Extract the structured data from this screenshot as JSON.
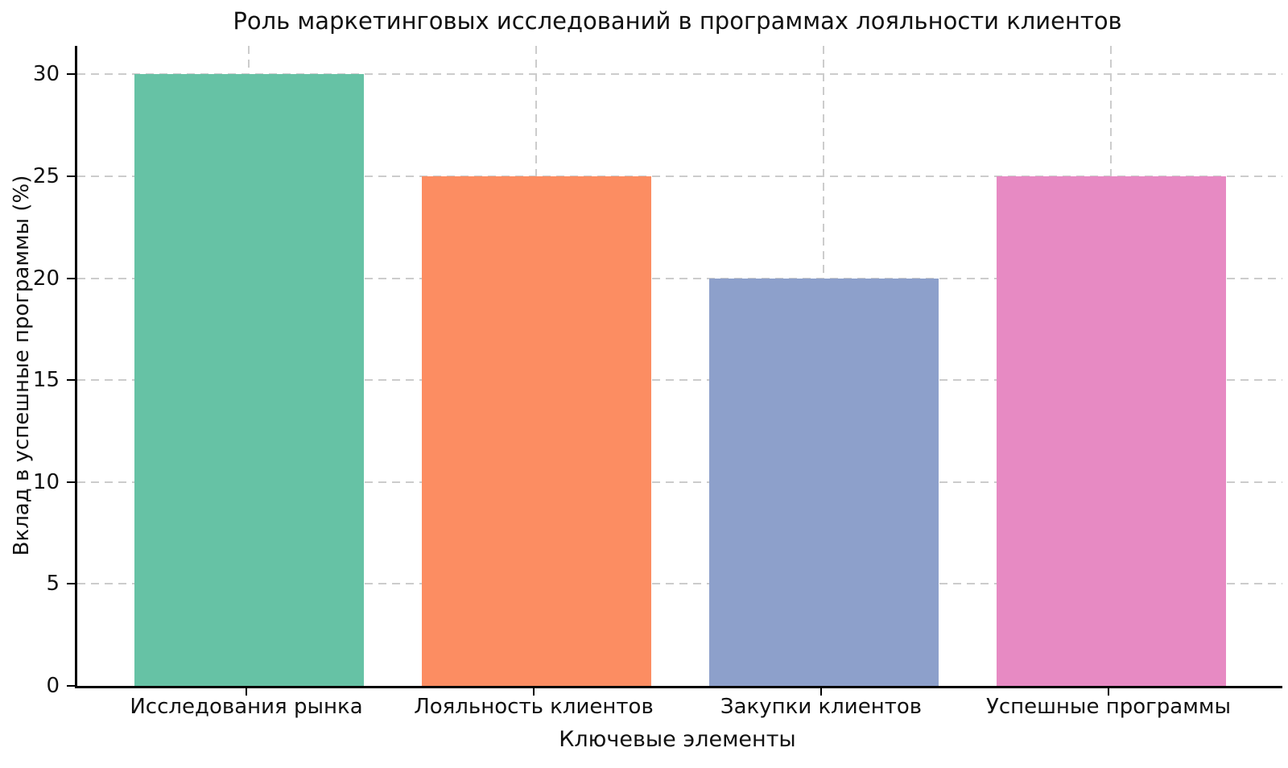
{
  "chart_data": {
    "type": "bar",
    "title": "Роль маркетинговых исследований в программах лояльности клиентов",
    "xlabel": "Ключевые элементы",
    "ylabel": "Вклад в успешные программы (%)",
    "categories": [
      "Исследования рынка",
      "Лояльность клиентов",
      "Закупки клиентов",
      "Успешные программы"
    ],
    "values": [
      30,
      25,
      20,
      25
    ],
    "bar_colors": [
      "#66c2a5",
      "#fc8d62",
      "#8da0cb",
      "#e78ac3"
    ],
    "yticks": [
      0,
      5,
      10,
      15,
      20,
      25,
      30
    ],
    "ylim": [
      0,
      31.4
    ],
    "grid": "dashed-both",
    "grid_color": "#cccccc",
    "axis_color": "#000000",
    "background_color": "#ffffff",
    "legend": "none"
  }
}
